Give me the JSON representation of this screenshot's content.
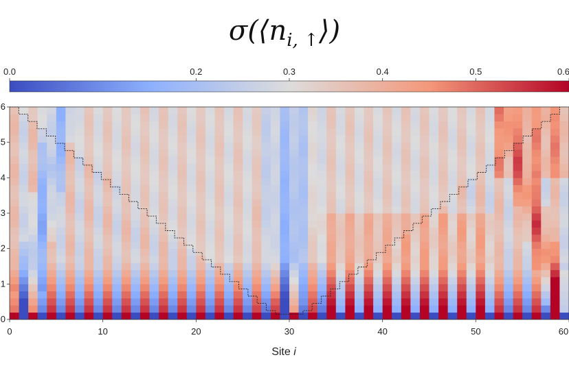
{
  "chart_data": {
    "type": "heatmap",
    "title": {
      "prefix": "σ(⟨",
      "var": "n",
      "sub": "i, ↑",
      "suffix": "⟩)"
    },
    "xlabel": {
      "text": "Site ",
      "var": "i"
    },
    "ylabel": "",
    "xlim": [
      0,
      60
    ],
    "ylim": [
      0,
      6
    ],
    "x_ticks": [
      "0",
      "10",
      "20",
      "30",
      "40",
      "50",
      "60"
    ],
    "y_ticks": [
      "0",
      "1",
      "2",
      "3",
      "4",
      "5",
      "6"
    ],
    "colorbar": {
      "range": [
        0.0,
        0.6
      ],
      "ticks": [
        "0.0",
        "0.2",
        "0.3",
        "0.4",
        "0.5",
        "0.6"
      ],
      "colormap": "coolwarm",
      "colors": [
        "#3b4cc0",
        "#8db0fe",
        "#dddcdc",
        "#f4987a",
        "#b40426"
      ]
    },
    "grid": {
      "sites": 60,
      "time_rows": 30
    },
    "pattern": {
      "bottom_row_even": 0.6,
      "bottom_row_odd": 0.0,
      "central_low_region_sites": [
        26,
        33
      ],
      "right_high_band_sites": [
        52,
        59
      ]
    },
    "light_cone": {
      "description": "stepped boundary line",
      "points": [
        [
          0,
          6
        ],
        [
          28,
          0.15
        ],
        [
          31,
          0.15
        ],
        [
          59,
          6
        ]
      ]
    }
  }
}
